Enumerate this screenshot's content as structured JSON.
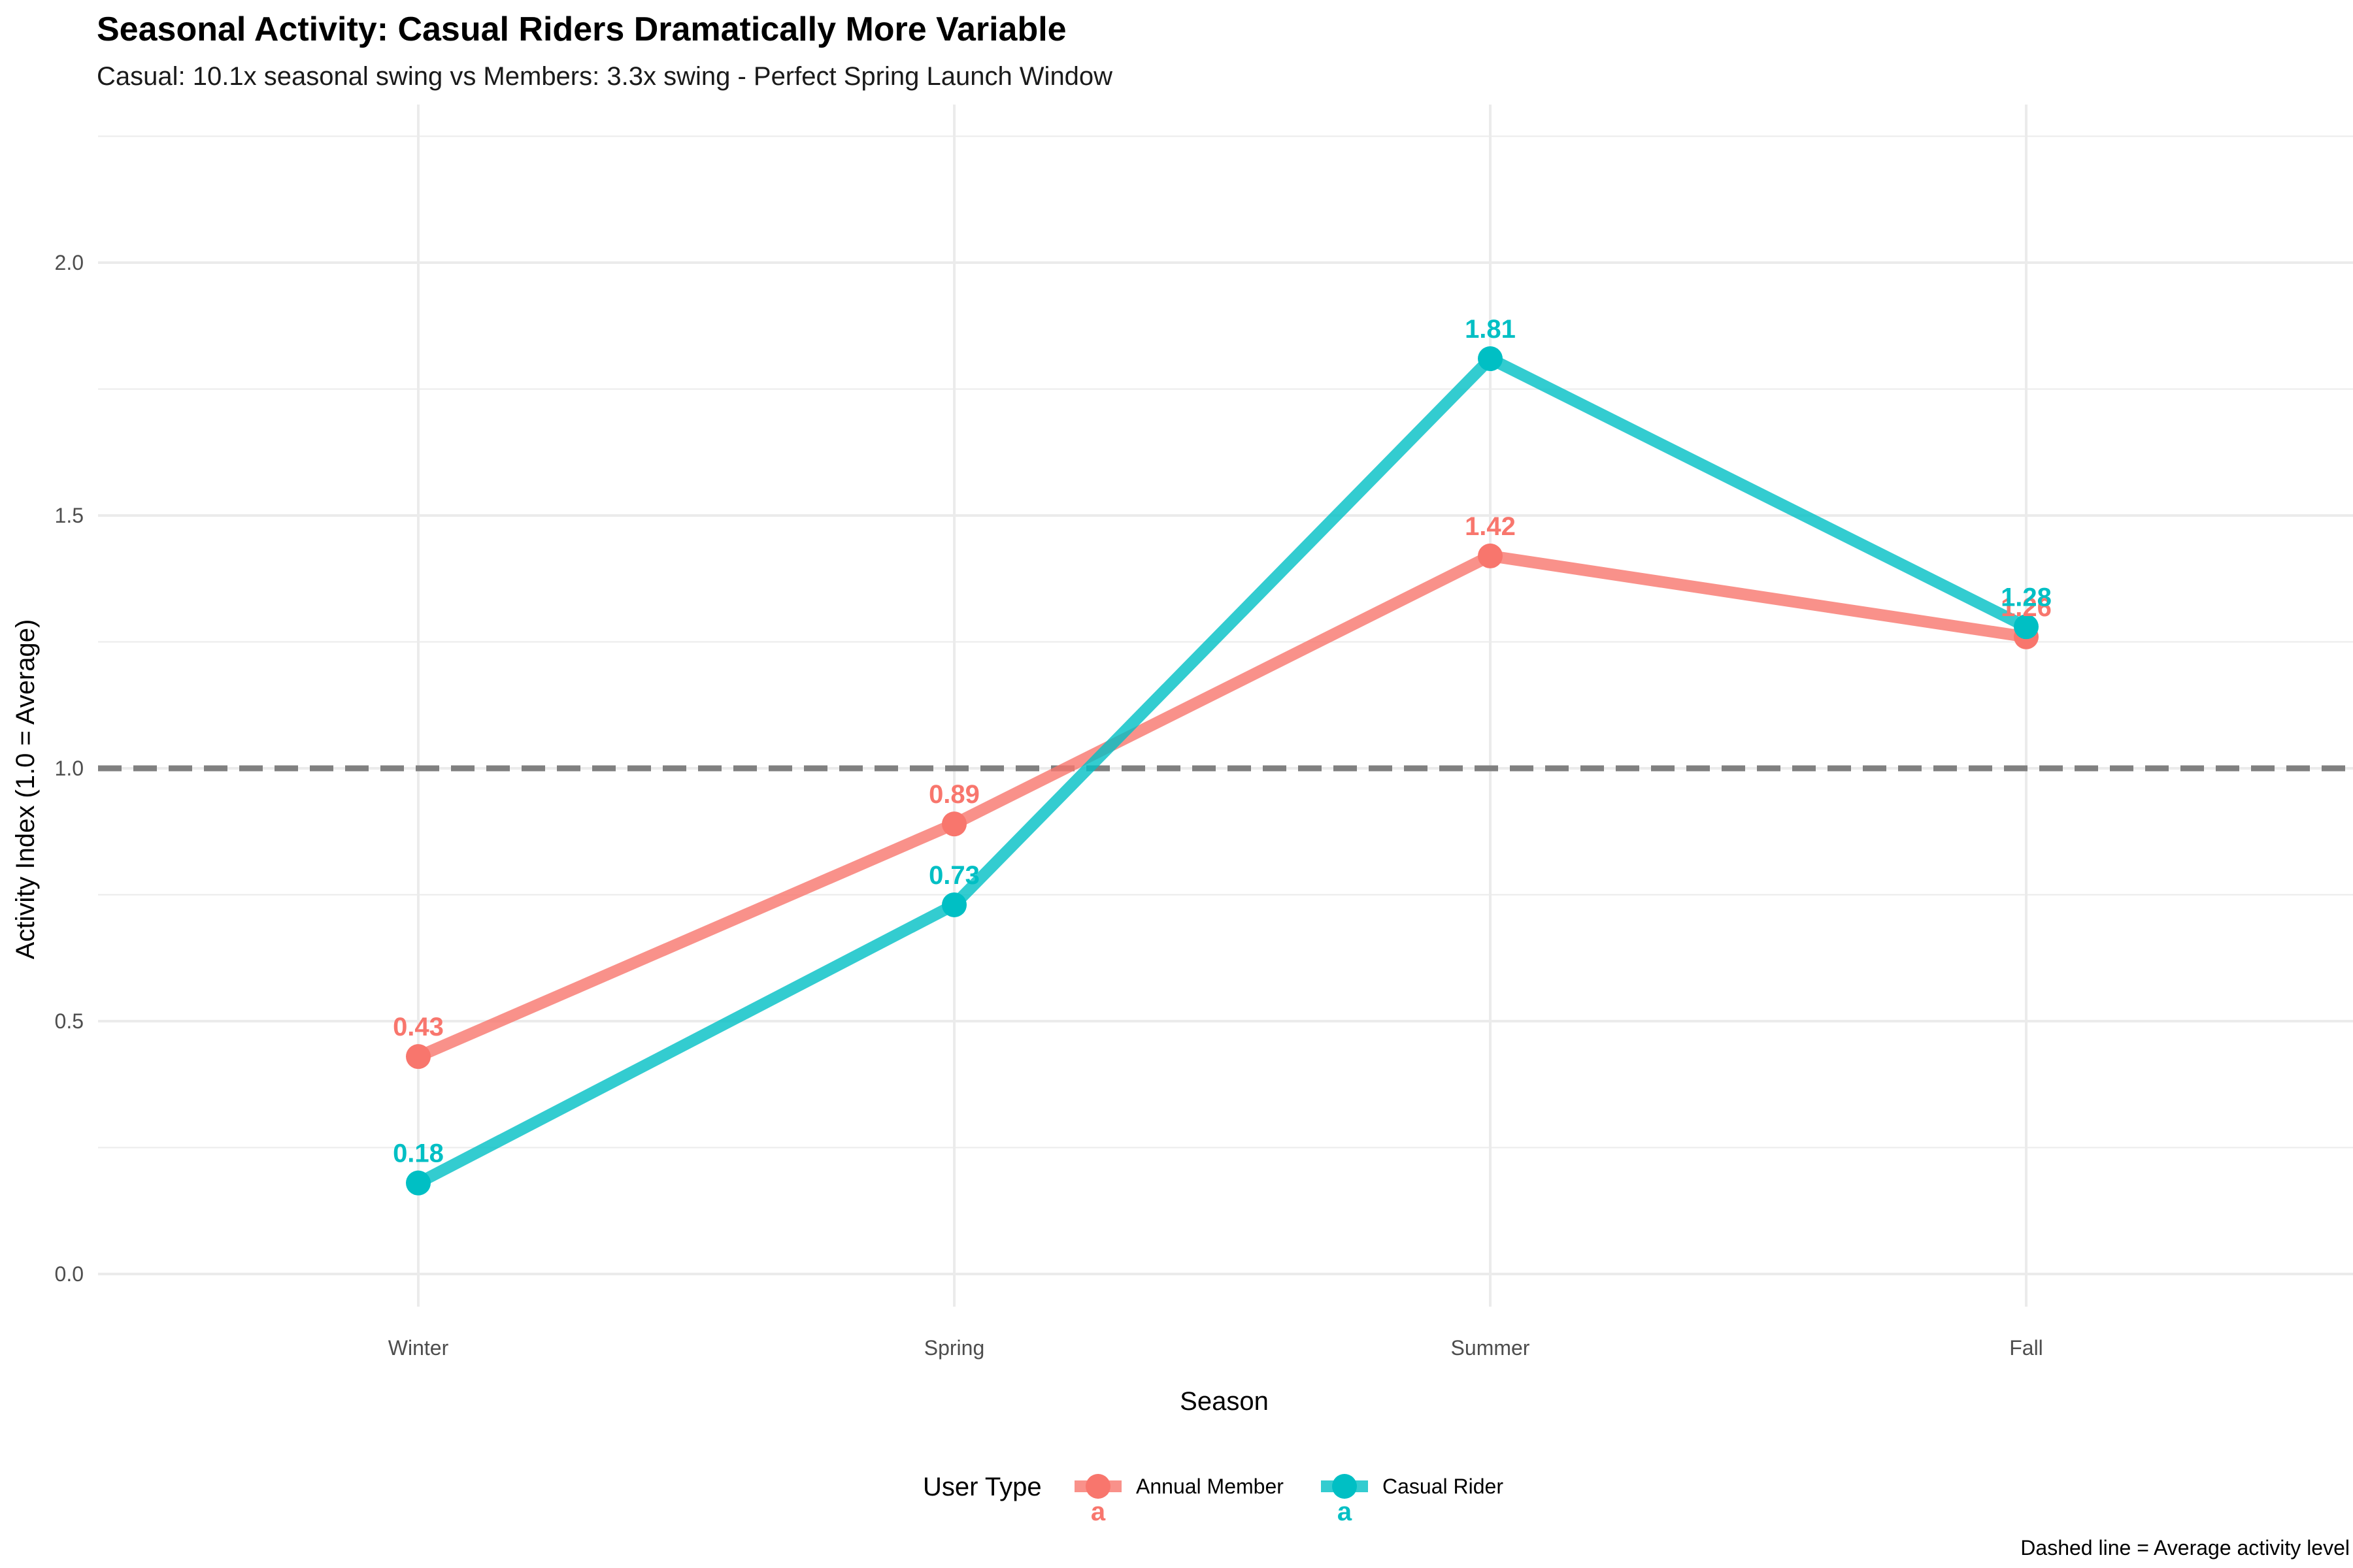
{
  "chart_data": {
    "type": "line",
    "title": "Seasonal Activity: Casual Riders Dramatically More Variable",
    "subtitle": "Casual: 10.1x seasonal swing vs Members: 3.3x swing - Perfect Spring Launch Window",
    "xlabel": "Season",
    "ylabel": "Activity Index (1.0 = Average)",
    "categories": [
      "Winter",
      "Spring",
      "Summer",
      "Fall"
    ],
    "series": [
      {
        "name": "Annual Member",
        "values": [
          0.43,
          0.89,
          1.42,
          1.26
        ],
        "labels": [
          "0.43",
          "0.89",
          "1.42",
          "1.26"
        ],
        "color": "#F8766D"
      },
      {
        "name": "Casual Rider",
        "values": [
          0.18,
          0.73,
          1.81,
          1.28
        ],
        "labels": [
          "0.18",
          "0.73",
          "1.81",
          "1.28"
        ],
        "color": "#00BFC4"
      }
    ],
    "ylim": [
      -0.1,
      2.25
    ],
    "yticks": [
      0.0,
      0.5,
      1.0,
      1.5,
      2.0
    ],
    "ytick_labels": [
      "0.0",
      "0.5",
      "1.0",
      "1.5",
      "2.0"
    ],
    "reference_line": {
      "value": 1.0,
      "style": "dashed",
      "color": "#808080"
    },
    "grid": true,
    "legend": {
      "title": "User Type",
      "position": "bottom",
      "key_glyph": "a"
    },
    "caption": "Dashed line = Average activity level"
  }
}
